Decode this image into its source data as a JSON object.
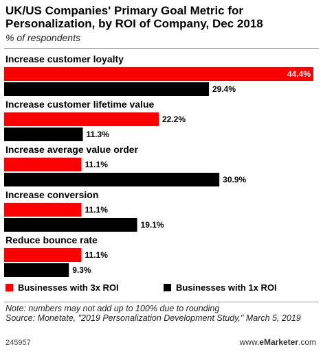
{
  "header": {
    "title": "UK/US Companies' Primary Goal Metric for Personalization, by ROI of Company, Dec 2018",
    "subtitle": "% of respondents"
  },
  "colors": {
    "series1": "#ff0000",
    "series2": "#000000"
  },
  "chart_data": {
    "type": "bar",
    "orientation": "horizontal",
    "categories": [
      "Increase customer loyalty",
      "Increase customer lifetime value",
      "Increase average value order",
      "Increase conversion",
      "Reduce bounce rate"
    ],
    "series": [
      {
        "name": "Businesses with 3x ROI",
        "values": [
          44.4,
          22.2,
          11.1,
          11.1,
          11.1
        ],
        "labels": [
          "44.4%",
          "22.2%",
          "11.1%",
          "11.1%",
          "11.1%"
        ]
      },
      {
        "name": "Businesses with 1x ROI",
        "values": [
          29.4,
          11.3,
          30.9,
          19.1,
          9.3
        ],
        "labels": [
          "29.4%",
          "11.3%",
          "30.9%",
          "19.1%",
          "9.3%"
        ]
      }
    ],
    "xlim": [
      0,
      44.4
    ],
    "grid": false,
    "legend_position": "bottom"
  },
  "legend": {
    "item1": "Businesses with 3x ROI",
    "item2": "Businesses with 1x ROI"
  },
  "notes": {
    "note": "Note: numbers may not add up to 100% due to rounding",
    "source": "Source: Monetate, \"2019 Personalization Development Study,\" March 5, 2019"
  },
  "footer": {
    "id": "245957",
    "brand_prefix": "www.",
    "brand_name": "eMarketer",
    "brand_suffix": ".com"
  }
}
